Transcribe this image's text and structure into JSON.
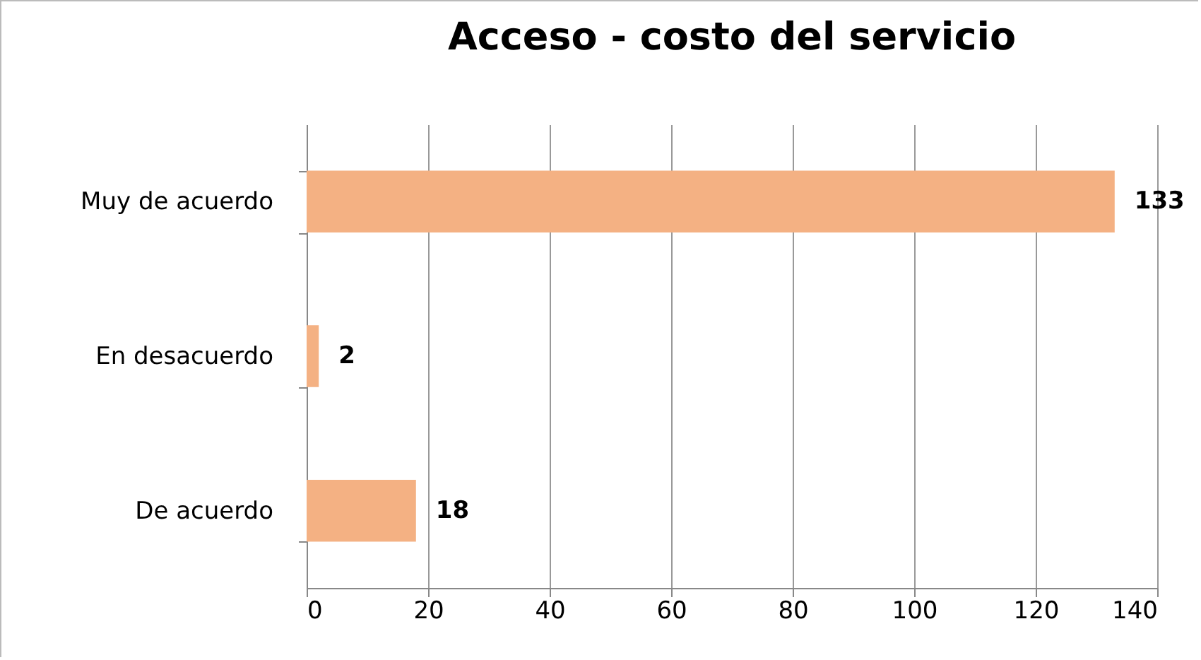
{
  "chart_data": {
    "type": "bar",
    "title": "Acceso - costo del servicio",
    "orientation": "horizontal",
    "categories": [
      "Muy de acuerdo",
      "En desacuerdo",
      "De acuerdo"
    ],
    "values": [
      133,
      2,
      18
    ],
    "color": "#f4b183",
    "xlim": [
      0,
      140
    ],
    "xticks": [
      0,
      20,
      40,
      60,
      80,
      100,
      120,
      140
    ],
    "grid": "x",
    "data_labels": true
  }
}
